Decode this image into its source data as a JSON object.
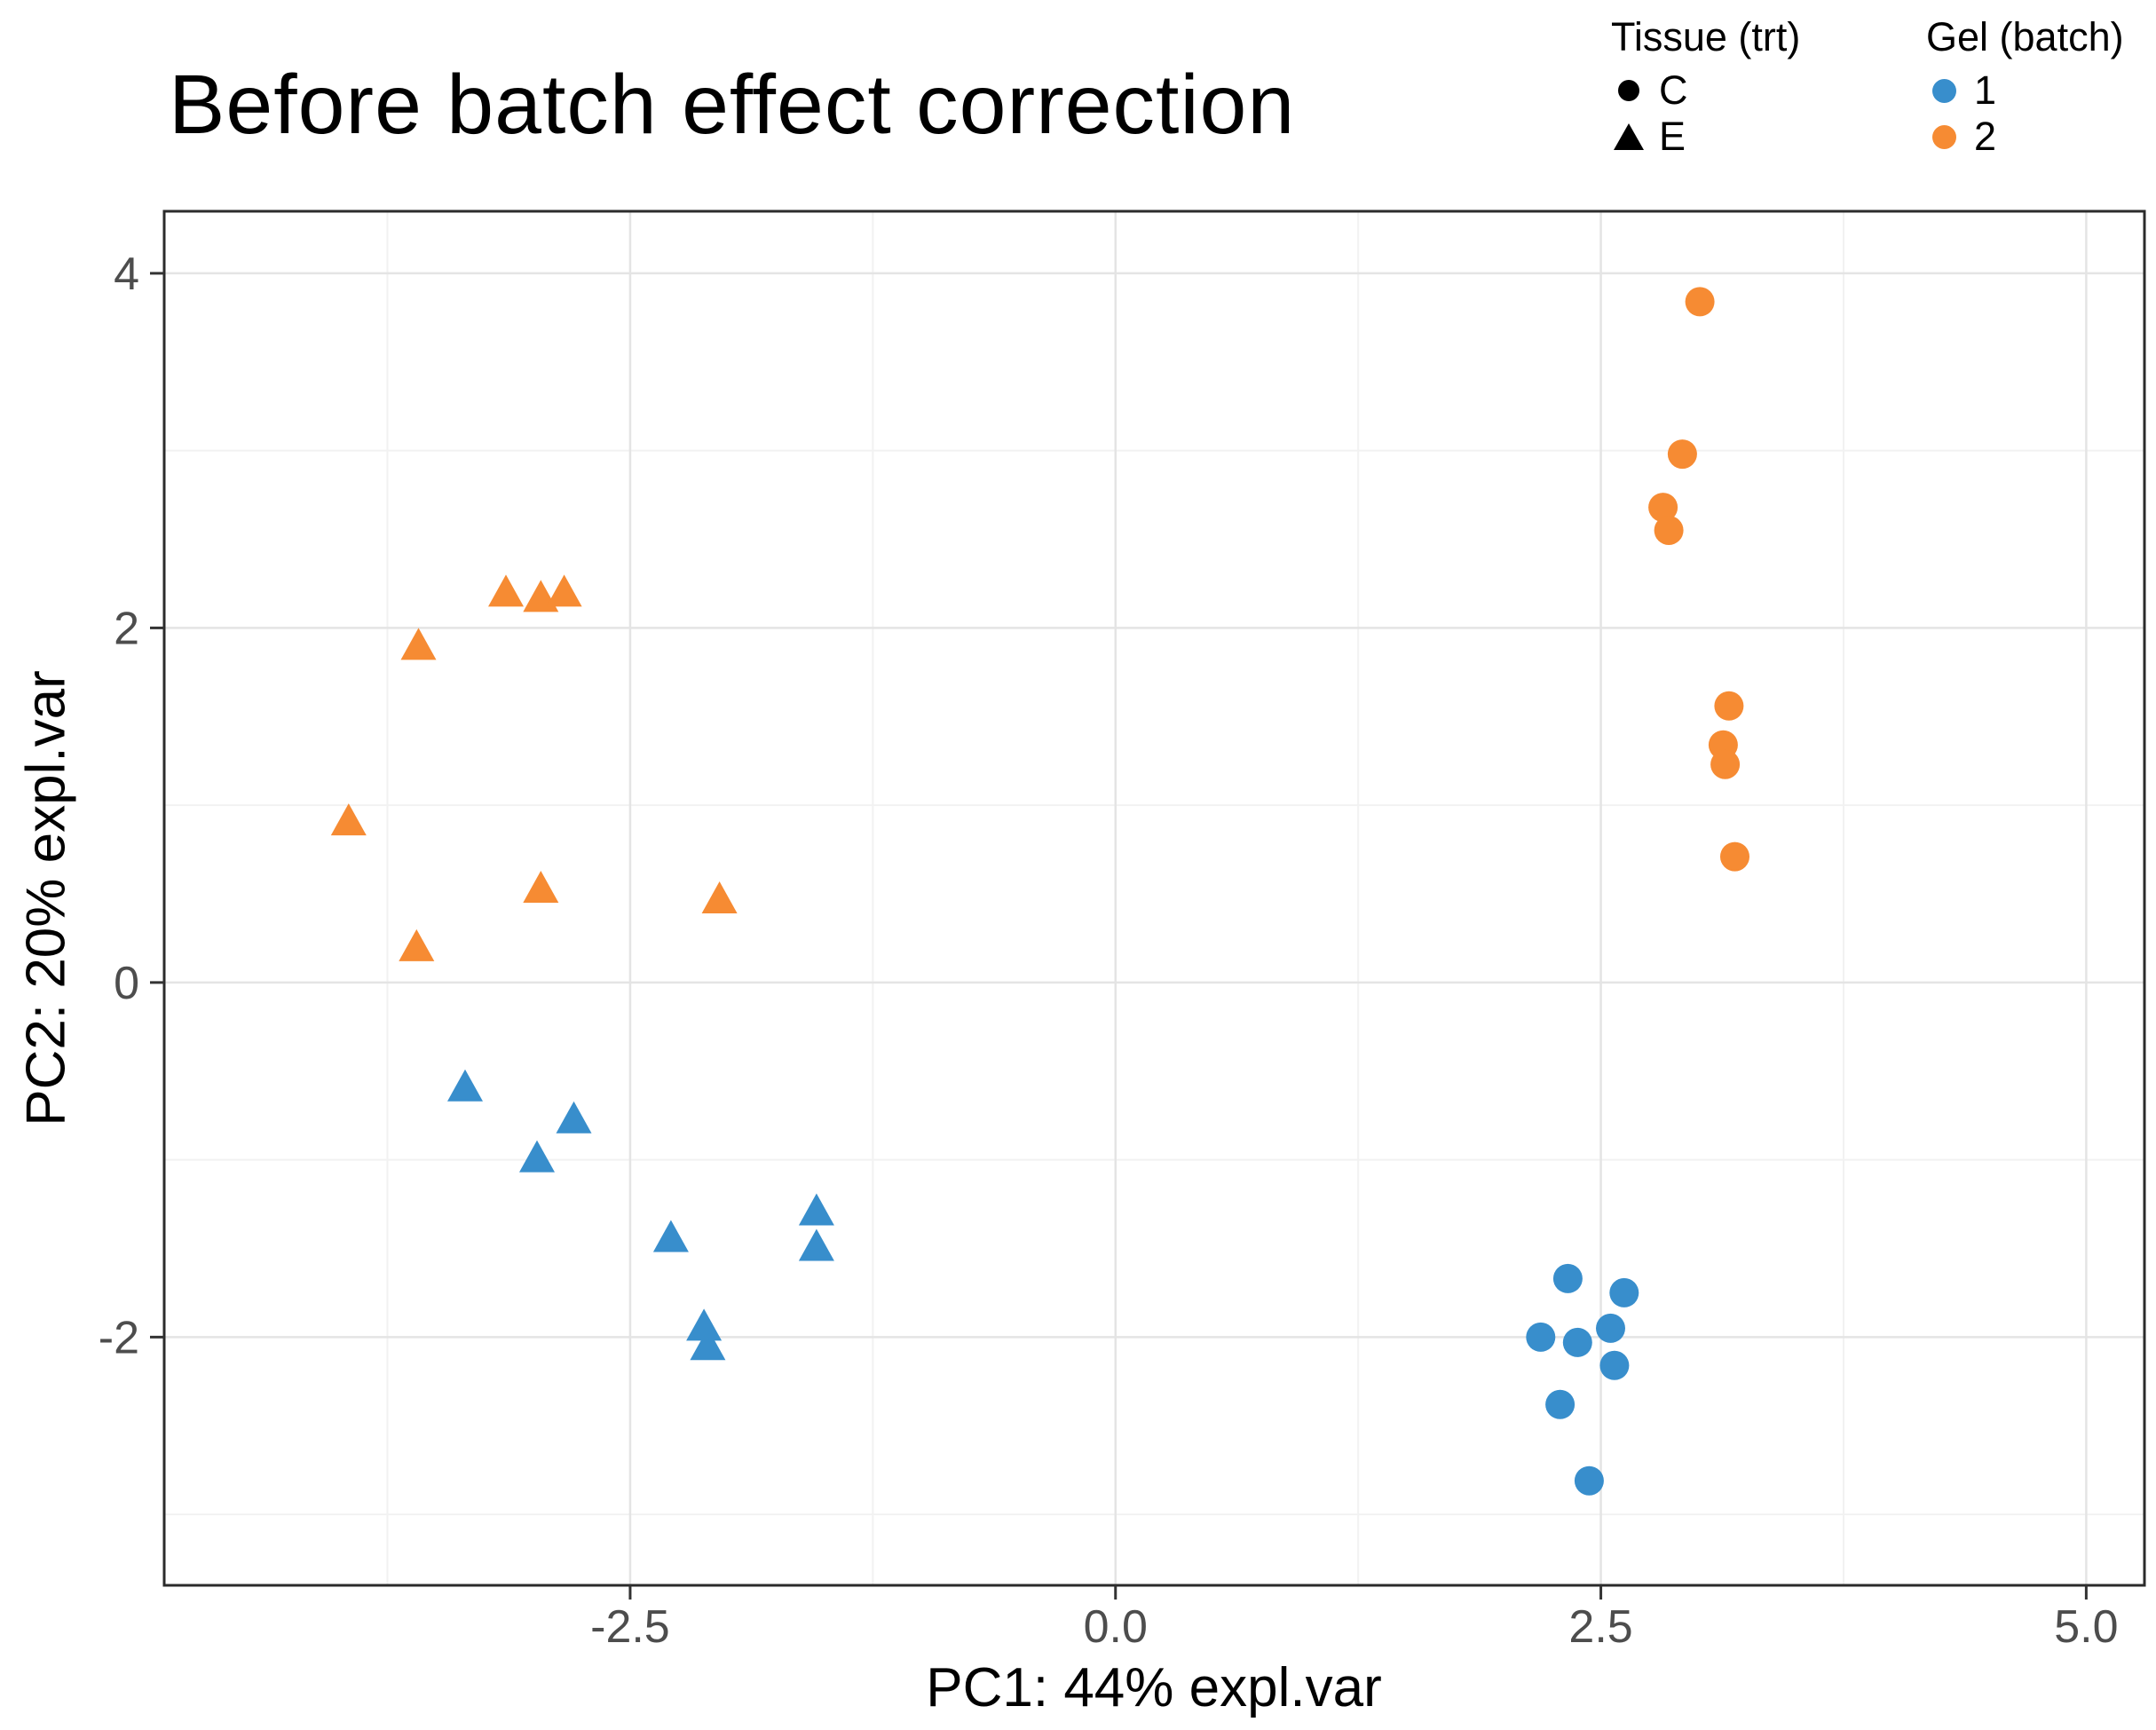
{
  "title": "Before batch effect correction",
  "axes": {
    "x_label": "PC1: 44% expl.var",
    "y_label": "PC2: 20% expl.var"
  },
  "legend": {
    "tissue": {
      "title": "Tissue (trt)",
      "items": [
        {
          "label": "C",
          "shape": "circle"
        },
        {
          "label": "E",
          "shape": "triangle"
        }
      ]
    },
    "gel": {
      "title": "Gel (batch)",
      "items": [
        {
          "label": "1",
          "color": "#388ECC"
        },
        {
          "label": "2",
          "color": "#F68B33"
        }
      ]
    }
  },
  "chart_data": {
    "type": "scatter",
    "title": "Before batch effect correction",
    "xlabel": "PC1: 44% expl.var",
    "ylabel": "PC2: 20% expl.var",
    "xlim": [
      -4.9,
      5.3
    ],
    "ylim": [
      -3.4,
      4.35
    ],
    "xticks": [
      -2.5,
      0,
      2.5,
      5
    ],
    "xtick_labels": [
      "-2.5",
      "0.0",
      "2.5",
      "5.0"
    ],
    "yticks": [
      -2,
      0,
      2,
      4
    ],
    "ytick_labels": [
      "-2",
      "0",
      "2",
      "4"
    ],
    "grid": true,
    "legend_position": "top-right",
    "panel_border": "#2b2b2b",
    "grid_major_color": "#e4e4e4",
    "grid_minor_color": "#f2f2f2",
    "tick_label_color": "#4d4d4d",
    "series": [
      {
        "name": "Tissue C, Gel batch 1",
        "tissue": "C",
        "batch": "1",
        "shape": "circle",
        "color": "#388ECC",
        "points": [
          [
            2.33,
            -1.67
          ],
          [
            2.62,
            -1.75
          ],
          [
            2.19,
            -2.0
          ],
          [
            2.38,
            -2.03
          ],
          [
            2.55,
            -1.95
          ],
          [
            2.57,
            -2.16
          ],
          [
            2.29,
            -2.38
          ],
          [
            2.44,
            -2.81
          ]
        ]
      },
      {
        "name": "Tissue C, Gel batch 2",
        "tissue": "C",
        "batch": "2",
        "shape": "circle",
        "color": "#F68B33",
        "points": [
          [
            3.01,
            3.84
          ],
          [
            2.92,
            2.98
          ],
          [
            2.82,
            2.68
          ],
          [
            2.85,
            2.55
          ],
          [
            3.16,
            1.56
          ],
          [
            3.13,
            1.34
          ],
          [
            3.14,
            1.23
          ],
          [
            3.19,
            0.71
          ]
        ]
      },
      {
        "name": "Tissue E, Gel batch 1",
        "tissue": "E",
        "batch": "1",
        "shape": "triangle",
        "color": "#388ECC",
        "points": [
          [
            -3.35,
            -0.6
          ],
          [
            -2.79,
            -0.78
          ],
          [
            -2.98,
            -1.0
          ],
          [
            -2.29,
            -1.45
          ],
          [
            -1.54,
            -1.3
          ],
          [
            -1.54,
            -1.5
          ],
          [
            -2.12,
            -1.95
          ],
          [
            -2.1,
            -2.06
          ]
        ]
      },
      {
        "name": "Tissue E, Gel batch 2",
        "tissue": "E",
        "batch": "2",
        "shape": "triangle",
        "color": "#F68B33",
        "points": [
          [
            -3.14,
            2.19
          ],
          [
            -2.96,
            2.16
          ],
          [
            -2.84,
            2.19
          ],
          [
            -3.59,
            1.89
          ],
          [
            -3.95,
            0.9
          ],
          [
            -2.96,
            0.52
          ],
          [
            -2.04,
            0.46
          ],
          [
            -3.6,
            0.19
          ]
        ]
      }
    ]
  }
}
